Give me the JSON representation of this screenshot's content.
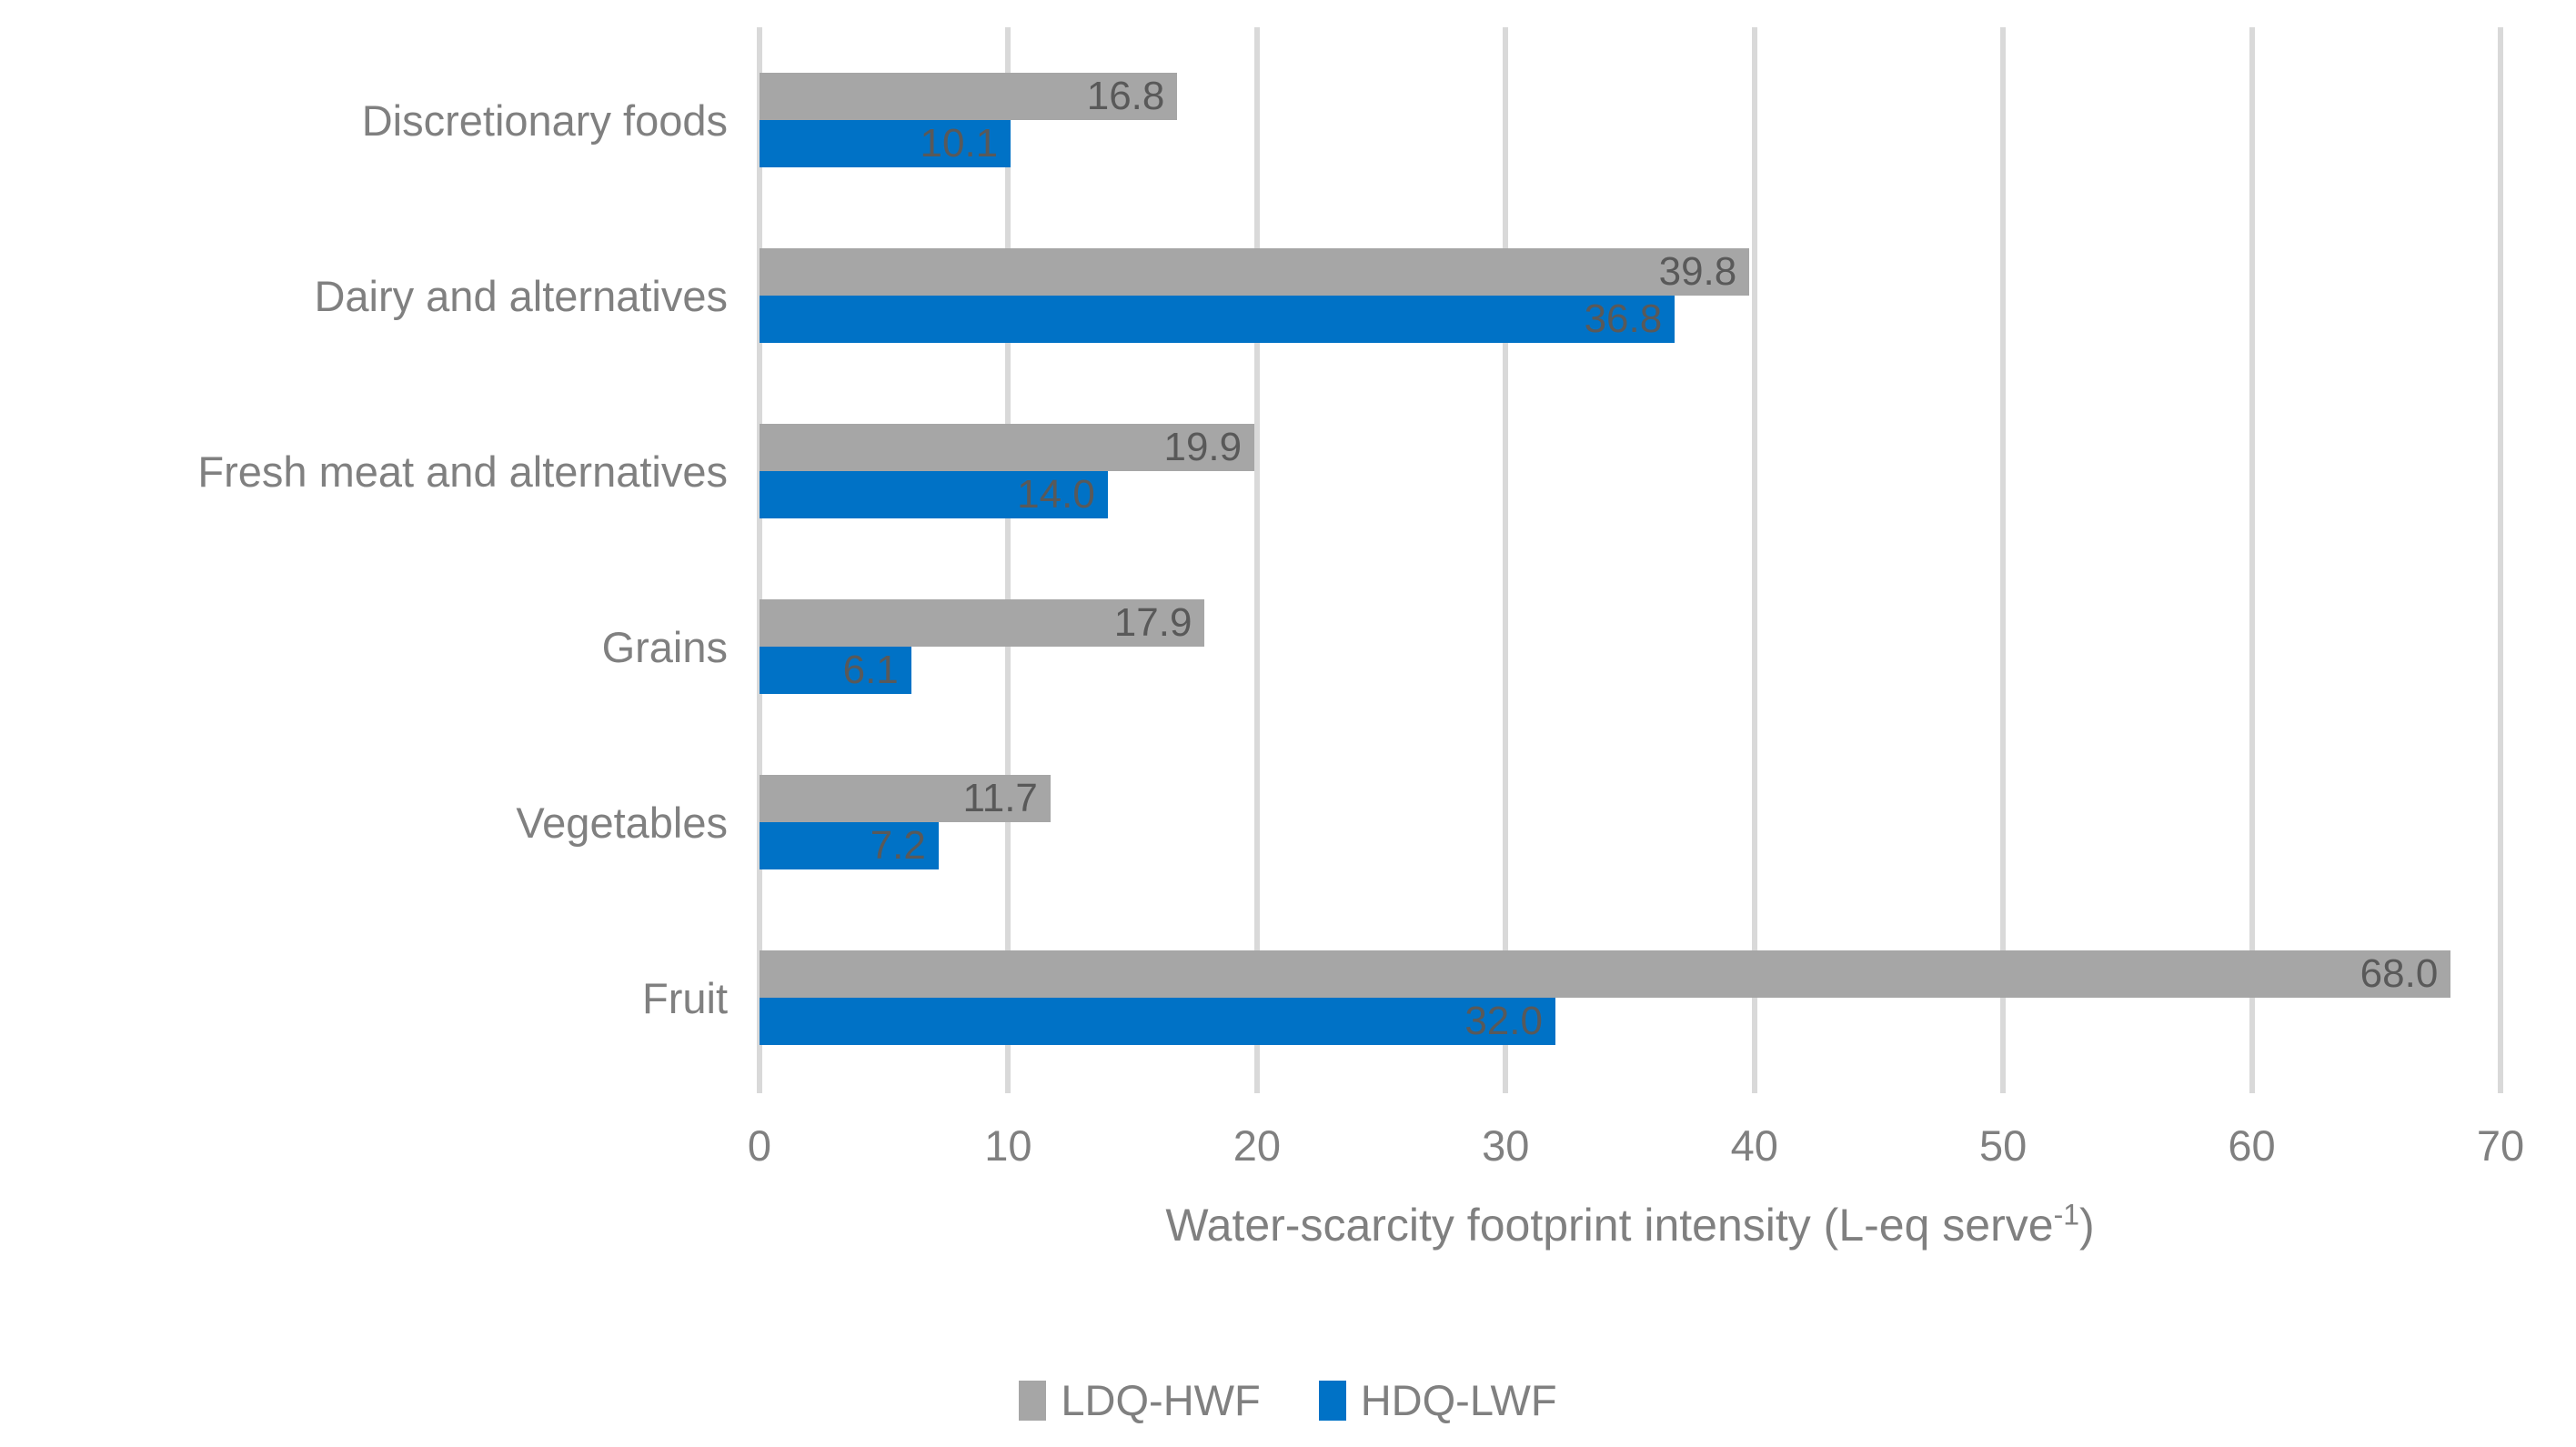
{
  "chart_data": {
    "type": "bar",
    "orientation": "horizontal",
    "xlabel": "Water-scarcity footprint intensity (L-eq serve-1)",
    "xlabel_parts": {
      "prefix": "Water-scarcity footprint intensity (L-eq serve",
      "superscript": "-1",
      "suffix": ")"
    },
    "categories": [
      "Discretionary foods",
      "Dairy and alternatives",
      "Fresh meat and alternatives",
      "Grains",
      "Vegetables",
      "Fruit"
    ],
    "series": [
      {
        "name": "LDQ-HWF",
        "color": "#a6a6a6",
        "values": [
          16.8,
          39.8,
          19.9,
          17.9,
          11.7,
          68.0
        ],
        "labels": [
          "16.8",
          "39.8",
          "19.9",
          "17.9",
          "11.7",
          "68.0"
        ]
      },
      {
        "name": "HDQ-LWF",
        "color": "#0072c6",
        "values": [
          10.1,
          36.8,
          14.0,
          6.1,
          7.2,
          32.0
        ],
        "labels": [
          "10.1",
          "36.8",
          "14.0",
          "6.1",
          "7.2",
          "32.0"
        ]
      }
    ],
    "xlim": [
      0,
      70
    ],
    "xticks": [
      0,
      10,
      20,
      30,
      40,
      50,
      60,
      70
    ],
    "grid": "vertical",
    "legend_position": "bottom",
    "colors": {
      "gridline": "#d9d9d9",
      "axis_text": "#808080",
      "data_label": "#595959",
      "background": "#ffffff"
    }
  }
}
